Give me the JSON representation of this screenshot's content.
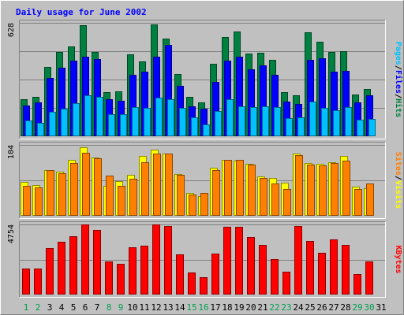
{
  "chart_data": {
    "type": "bar",
    "title": "Daily usage for June 2002",
    "categories": [
      "1",
      "2",
      "3",
      "4",
      "5",
      "6",
      "7",
      "8",
      "9",
      "10",
      "11",
      "12",
      "13",
      "14",
      "15",
      "16",
      "17",
      "18",
      "19",
      "20",
      "21",
      "22",
      "23",
      "24",
      "25",
      "26",
      "27",
      "28",
      "29",
      "30",
      "31"
    ],
    "weekend_days": [
      "1",
      "2",
      "8",
      "9",
      "15",
      "16",
      "22",
      "23",
      "29",
      "30"
    ],
    "panels": [
      {
        "id": "hits-files-pages",
        "max_label": "628",
        "ylim": [
          0,
          628
        ],
        "series": [
          {
            "name": "Hits",
            "color": "#008040",
            "values": [
              205,
              220,
              385,
              467,
              496,
              613,
              466,
              246,
              250,
              455,
              416,
              619,
              542,
              343,
              217,
              188,
              402,
              549,
              578,
              460,
              462,
              422,
              244,
              226,
              577,
              523,
              468,
              470,
              232,
              262,
              0
            ]
          },
          {
            "name": "Files",
            "color": "#0000ff",
            "values": [
              168,
              187,
              322,
              381,
              419,
              440,
              426,
              207,
              196,
              338,
              357,
              440,
              505,
              280,
              166,
              154,
              302,
              418,
              441,
              371,
              394,
              340,
              190,
              178,
              425,
              431,
              357,
              364,
              187,
              227,
              0
            ]
          },
          {
            "name": "Pages",
            "color": "#00c0ff",
            "values": [
              87,
              76,
              135,
              154,
              181,
              227,
              218,
              123,
              120,
              163,
              155,
              215,
              207,
              159,
              106,
              64,
              140,
              203,
              165,
              161,
              164,
              163,
              102,
              104,
              191,
              156,
              144,
              163,
              90,
              96,
              0
            ]
          }
        ],
        "legend_parts": [
          "Pages",
          "/",
          "Files",
          "/",
          "Hits"
        ],
        "legend_colors": [
          "#00c0ff",
          "#000000",
          "#0000ff",
          "#000000",
          "#008040"
        ]
      },
      {
        "id": "sites-visits",
        "max_label": "104",
        "ylim": [
          0,
          104
        ],
        "series": [
          {
            "name": "Visits",
            "color": "#ffff00",
            "values": [
              50,
              45,
              67,
              65,
              82,
              101,
              86,
              44,
              51,
              60,
              88,
              97,
              91,
              61,
              34,
              29,
              70,
              82,
              81,
              76,
              58,
              55,
              49,
              91,
              77,
              76,
              78,
              88,
              43,
              41,
              0
            ]
          },
          {
            "name": "Sites",
            "color": "#ff8000",
            "values": [
              44,
              42,
              67,
              62,
              77,
              93,
              84,
              59,
              44,
              54,
              79,
              91,
              91,
              60,
              31,
              34,
              67,
              82,
              82,
              75,
              55,
              47,
              39,
              89,
              75,
              74,
              77,
              81,
              39,
              47,
              0
            ]
          }
        ],
        "legend_parts": [
          "Sites",
          "/",
          "Visits"
        ],
        "legend_colors": [
          "#ff8000",
          "#000000",
          "#ffff00"
        ]
      },
      {
        "id": "kbytes",
        "max_label": "4754",
        "ylim": [
          0,
          4754
        ],
        "series": [
          {
            "name": "KBytes",
            "color": "#ff0000",
            "values": [
              1786,
              1786,
              3158,
              3553,
              3952,
              4754,
              4396,
              2227,
              2105,
              3214,
              3304,
              4754,
              4653,
              2708,
              1478,
              1154,
              2776,
              4573,
              4573,
              3906,
              3355,
              2409,
              1554,
              4653,
              3611,
              2817,
              3715,
              3340,
              1375,
              2227,
              0
            ]
          }
        ],
        "legend_parts": [
          "KBytes"
        ],
        "legend_colors": [
          "#ff0000"
        ]
      }
    ],
    "colors": {
      "background": "#c0c0c0",
      "title": "#0000ff",
      "grid": "#808080",
      "weekend_label": "#00a050",
      "weekday_label": "#000000"
    }
  }
}
